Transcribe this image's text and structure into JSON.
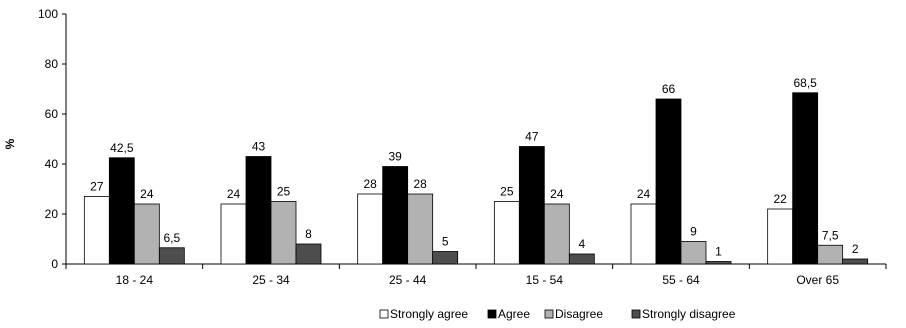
{
  "chart_data": {
    "type": "bar",
    "ylabel": "%",
    "xlabel": "",
    "ylim": [
      0,
      100
    ],
    "yticks": [
      "0",
      "20",
      "40",
      "60",
      "80",
      "100"
    ],
    "categories": [
      "18 - 24",
      "25 - 34",
      "25 - 44",
      "15 - 54",
      "55 - 64",
      "Over 65"
    ],
    "series": [
      {
        "name": "Strongly agree",
        "color": "#ffffff",
        "stroke": "#000000",
        "values": [
          27,
          24,
          28,
          25,
          24,
          22
        ],
        "labels": [
          "27",
          "24",
          "28",
          "25",
          "24",
          "22"
        ]
      },
      {
        "name": "Agree",
        "color": "#000000",
        "stroke": "#000000",
        "values": [
          42.5,
          43,
          39,
          47,
          66,
          68.5
        ],
        "labels": [
          "42,5",
          "43",
          "39",
          "47",
          "66",
          "68,5"
        ]
      },
      {
        "name": "Disagree",
        "color": "#b2b2b2",
        "stroke": "#000000",
        "values": [
          24,
          25,
          28,
          24,
          9,
          7.5
        ],
        "labels": [
          "24",
          "25",
          "28",
          "24",
          "9",
          "7,5"
        ]
      },
      {
        "name": "Strongly disagree",
        "color": "#4d4d4d",
        "stroke": "#000000",
        "values": [
          6.5,
          8,
          5,
          4,
          1,
          2
        ],
        "labels": [
          "6,5",
          "8",
          "5",
          "4",
          "1",
          "2"
        ]
      }
    ],
    "legend_position": "bottom",
    "grid": false
  }
}
